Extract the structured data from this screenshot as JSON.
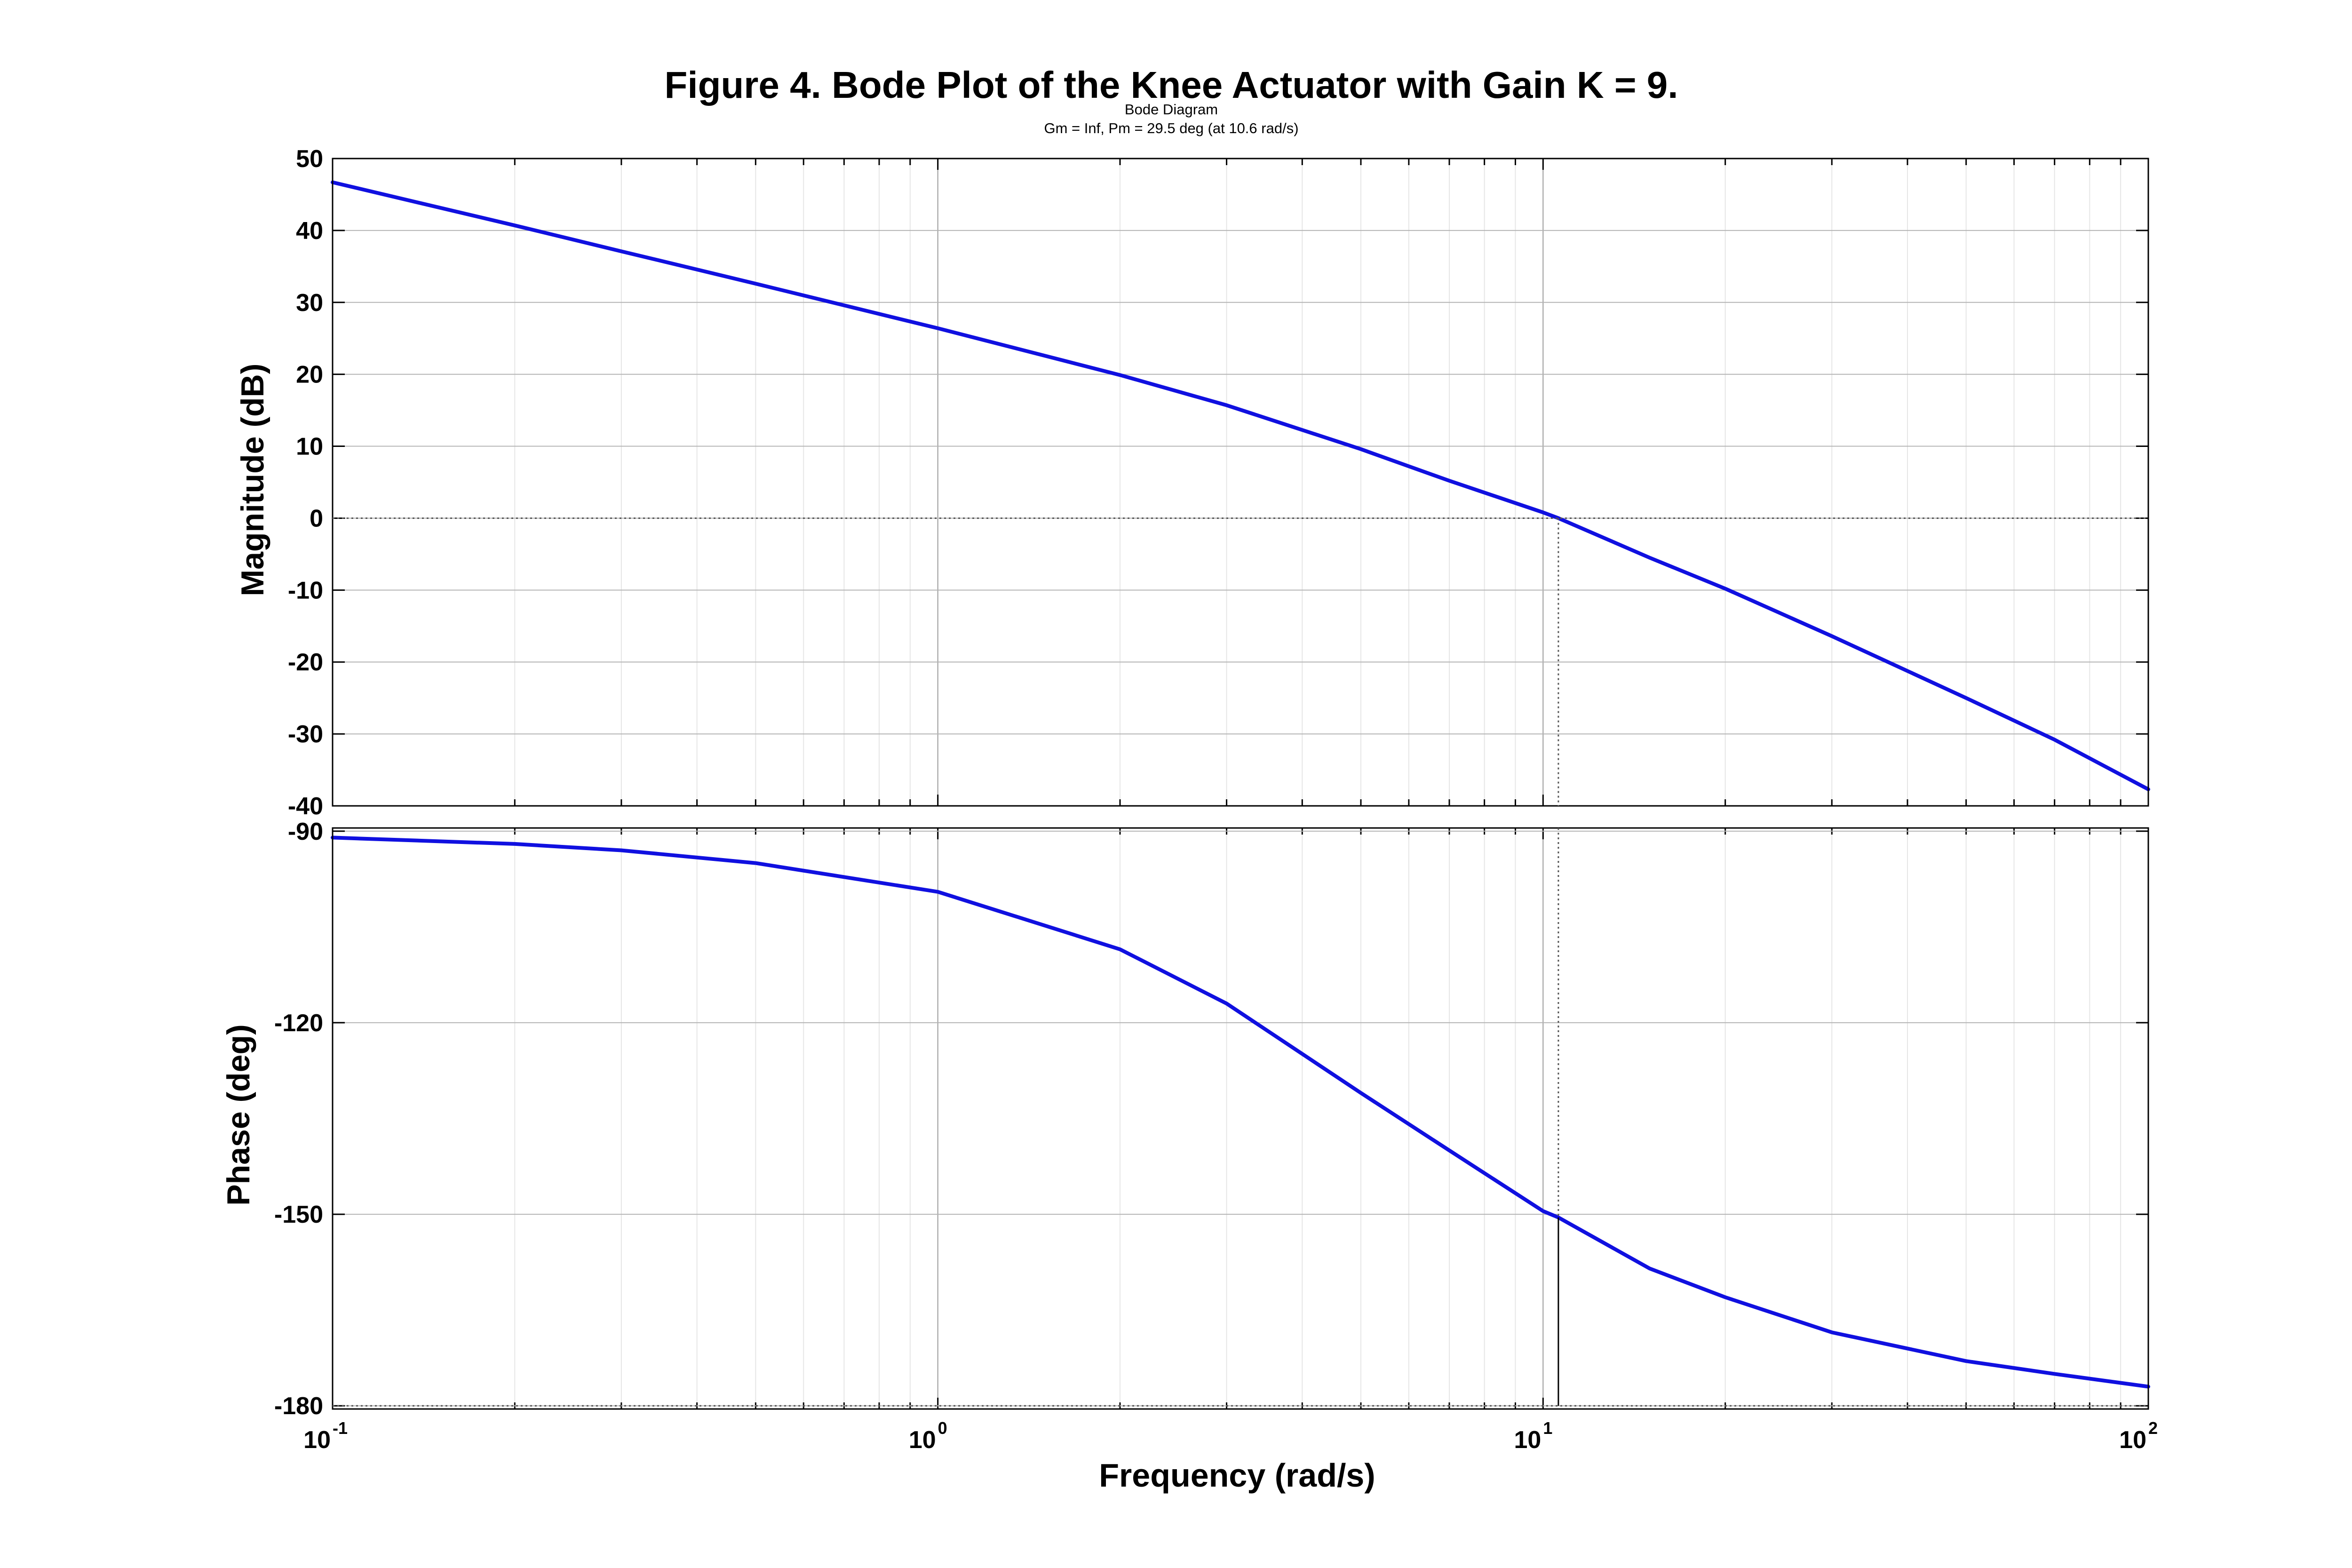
{
  "figure_title": "Figure 4. Bode Plot of the Knee Actuator with Gain K = 9.",
  "subtitle_line1": "Bode Diagram",
  "subtitle_line2": "Gm = Inf,  Pm = 29.5 deg (at 10.6 rad/s)",
  "colors": {
    "curve": "#1010e0",
    "grid": "#d0d0d0",
    "axis": "#000000"
  },
  "chart_data": [
    {
      "type": "line",
      "panel": "magnitude",
      "ylabel": "Magnitude  (dB)",
      "xscale": "log",
      "xlim": [
        0.1,
        100
      ],
      "ylim": [
        -40,
        50
      ],
      "yticks": [
        50,
        40,
        30,
        20,
        10,
        0,
        -10,
        -20,
        -30,
        -40
      ],
      "grid": true,
      "series": [
        {
          "x": [
            0.1,
            0.2,
            0.3,
            0.5,
            1,
            2,
            3,
            5,
            7,
            10,
            10.6,
            15,
            20,
            30,
            50,
            70,
            100
          ],
          "y": [
            46.7,
            40.7,
            37.1,
            32.6,
            26.4,
            19.9,
            15.7,
            9.6,
            5.2,
            0.8,
            0,
            -5.5,
            -9.8,
            -16.4,
            -25,
            -30.8,
            -37.7
          ]
        }
      ]
    },
    {
      "type": "line",
      "panel": "phase",
      "ylabel": "Phase  (deg)",
      "xlabel": "Frequency   (rad/s)",
      "xscale": "log",
      "xlim": [
        0.1,
        100
      ],
      "ylim": [
        -180.5,
        -89.5
      ],
      "yticks": [
        -90,
        -120,
        -150,
        -180
      ],
      "xticks": [
        {
          "value": 0.1,
          "base": "10",
          "exp": "-1"
        },
        {
          "value": 1,
          "base": "10",
          "exp": "0"
        },
        {
          "value": 10,
          "base": "10",
          "exp": "1"
        },
        {
          "value": 100,
          "base": "10",
          "exp": "2"
        }
      ],
      "grid": true,
      "series": [
        {
          "x": [
            0.1,
            0.2,
            0.3,
            0.5,
            1,
            2,
            3,
            5,
            7,
            10,
            10.6,
            15,
            20,
            30,
            50,
            70,
            100
          ],
          "y": [
            -91,
            -92,
            -93,
            -95,
            -99.5,
            -108.5,
            -117,
            -131,
            -140,
            -149.5,
            -150.5,
            -158.5,
            -163,
            -168.5,
            -173,
            -175,
            -177
          ]
        }
      ]
    }
  ],
  "margin_markers": {
    "crossover_frequency": 10.6,
    "phase_at_crossover": -150.5,
    "reference_phase": -180,
    "reference_magnitude": 0
  }
}
